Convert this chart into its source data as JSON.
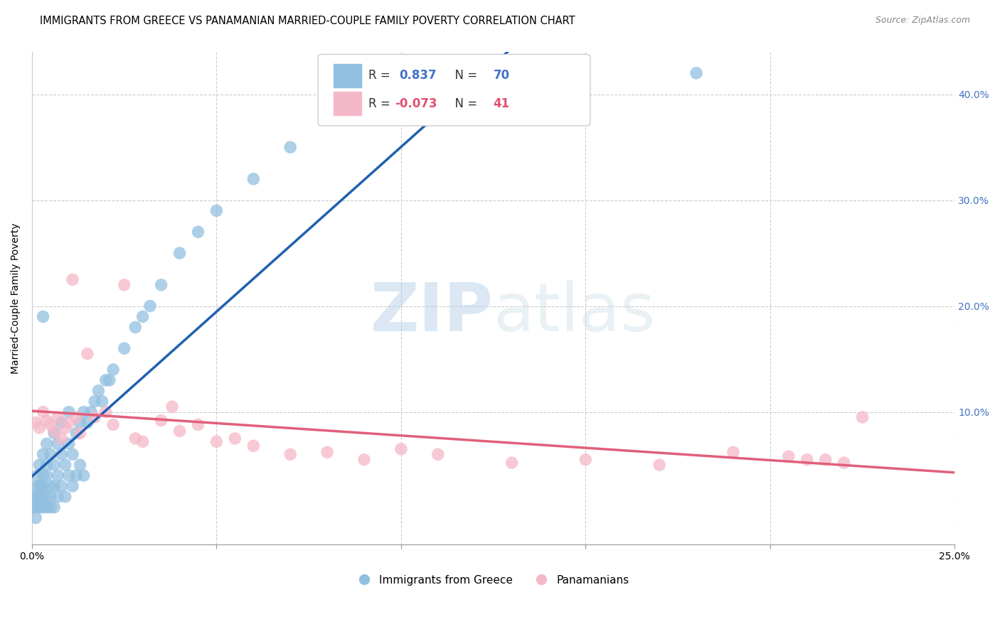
{
  "title": "IMMIGRANTS FROM GREECE VS PANAMANIAN MARRIED-COUPLE FAMILY POVERTY CORRELATION CHART",
  "source": "Source: ZipAtlas.com",
  "ylabel": "Married-Couple Family Poverty",
  "r_greece": 0.837,
  "n_greece": 70,
  "r_panama": -0.073,
  "n_panama": 41,
  "blue_color": "#92c0e0",
  "pink_color": "#f5b8c8",
  "blue_line_color": "#2060b0",
  "pink_line_color": "#e0607a",
  "watermark_zip": "ZIP",
  "watermark_atlas": "atlas",
  "xlim": [
    0.0,
    0.25
  ],
  "ylim": [
    -0.025,
    0.44
  ],
  "yticks_right": [
    0.1,
    0.2,
    0.3,
    0.4
  ],
  "xtick_grid": [
    0.0,
    0.05,
    0.1,
    0.15,
    0.2,
    0.25
  ],
  "greece_x": [
    0.0005,
    0.001,
    0.001,
    0.001,
    0.001,
    0.0015,
    0.0015,
    0.002,
    0.002,
    0.002,
    0.002,
    0.002,
    0.0025,
    0.003,
    0.003,
    0.003,
    0.003,
    0.003,
    0.004,
    0.004,
    0.004,
    0.004,
    0.004,
    0.005,
    0.005,
    0.005,
    0.005,
    0.006,
    0.006,
    0.006,
    0.006,
    0.007,
    0.007,
    0.007,
    0.008,
    0.008,
    0.008,
    0.009,
    0.009,
    0.01,
    0.01,
    0.01,
    0.011,
    0.011,
    0.012,
    0.012,
    0.013,
    0.013,
    0.014,
    0.014,
    0.015,
    0.016,
    0.017,
    0.018,
    0.019,
    0.02,
    0.021,
    0.022,
    0.025,
    0.028,
    0.03,
    0.032,
    0.035,
    0.04,
    0.045,
    0.05,
    0.06,
    0.07,
    0.18,
    0.003
  ],
  "greece_y": [
    0.01,
    0.02,
    0.01,
    0.0,
    0.03,
    0.02,
    0.04,
    0.01,
    0.03,
    0.02,
    0.05,
    0.01,
    0.03,
    0.02,
    0.04,
    0.01,
    0.06,
    0.03,
    0.02,
    0.05,
    0.01,
    0.04,
    0.07,
    0.03,
    0.02,
    0.06,
    0.01,
    0.05,
    0.03,
    0.08,
    0.01,
    0.04,
    0.07,
    0.02,
    0.06,
    0.03,
    0.09,
    0.05,
    0.02,
    0.07,
    0.04,
    0.1,
    0.06,
    0.03,
    0.08,
    0.04,
    0.09,
    0.05,
    0.1,
    0.04,
    0.09,
    0.1,
    0.11,
    0.12,
    0.11,
    0.13,
    0.13,
    0.14,
    0.16,
    0.18,
    0.19,
    0.2,
    0.22,
    0.25,
    0.27,
    0.29,
    0.32,
    0.35,
    0.42,
    0.19
  ],
  "panama_x": [
    0.001,
    0.002,
    0.003,
    0.004,
    0.005,
    0.006,
    0.007,
    0.008,
    0.009,
    0.01,
    0.011,
    0.012,
    0.013,
    0.015,
    0.017,
    0.02,
    0.022,
    0.025,
    0.028,
    0.03,
    0.035,
    0.038,
    0.04,
    0.045,
    0.05,
    0.055,
    0.06,
    0.07,
    0.08,
    0.09,
    0.1,
    0.11,
    0.13,
    0.15,
    0.17,
    0.19,
    0.205,
    0.21,
    0.215,
    0.22,
    0.225
  ],
  "panama_y": [
    0.09,
    0.085,
    0.1,
    0.092,
    0.088,
    0.082,
    0.095,
    0.075,
    0.085,
    0.09,
    0.225,
    0.095,
    0.08,
    0.155,
    0.095,
    0.1,
    0.088,
    0.22,
    0.075,
    0.072,
    0.092,
    0.105,
    0.082,
    0.088,
    0.072,
    0.075,
    0.068,
    0.06,
    0.062,
    0.055,
    0.065,
    0.06,
    0.052,
    0.055,
    0.05,
    0.062,
    0.058,
    0.055,
    0.055,
    0.052,
    0.095
  ],
  "title_fontsize": 10.5,
  "source_fontsize": 9,
  "axis_label_fontsize": 10,
  "tick_fontsize": 10
}
